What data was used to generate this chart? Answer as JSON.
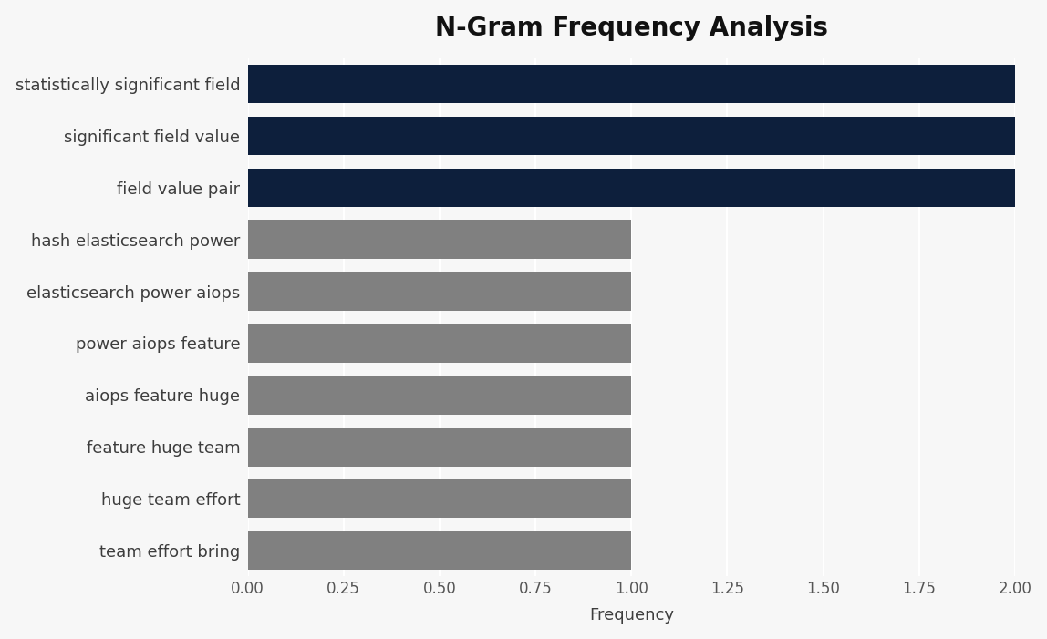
{
  "title": "N-Gram Frequency Analysis",
  "categories": [
    "team effort bring",
    "huge team effort",
    "feature huge team",
    "aiops feature huge",
    "power aiops feature",
    "elasticsearch power aiops",
    "hash elasticsearch power",
    "field value pair",
    "significant field value",
    "statistically significant field"
  ],
  "values": [
    1,
    1,
    1,
    1,
    1,
    1,
    1,
    2,
    2,
    2
  ],
  "bar_colors": [
    "#808080",
    "#808080",
    "#808080",
    "#808080",
    "#808080",
    "#808080",
    "#808080",
    "#0d1f3c",
    "#0d1f3c",
    "#0d1f3c"
  ],
  "xlabel": "Frequency",
  "ylabel": "",
  "xlim": [
    0,
    2.0
  ],
  "xticks": [
    0.0,
    0.25,
    0.5,
    0.75,
    1.0,
    1.25,
    1.5,
    1.75,
    2.0
  ],
  "xtick_labels": [
    "0.00",
    "0.25",
    "0.50",
    "0.75",
    "1.00",
    "1.25",
    "1.50",
    "1.75",
    "2.00"
  ],
  "figure_bg": "#f7f7f7",
  "axes_bg": "#f7f7f7",
  "title_fontsize": 20,
  "label_fontsize": 13,
  "tick_fontsize": 12,
  "bar_height": 0.75,
  "label_color": "#3d3d3d",
  "tick_color": "#555555",
  "grid_color": "#ffffff"
}
